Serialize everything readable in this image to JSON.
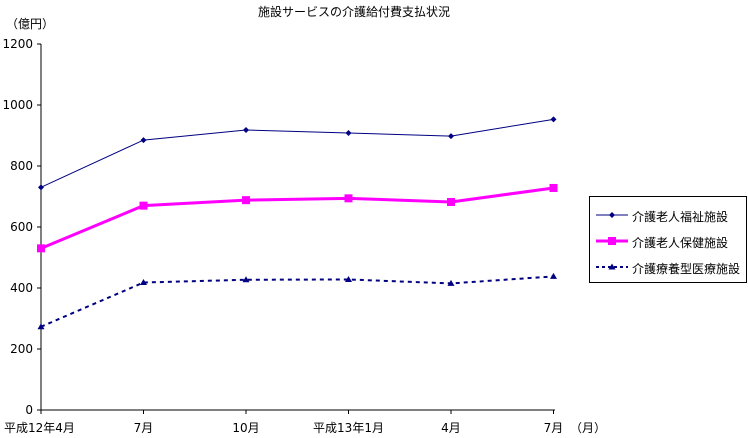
{
  "chart_data": {
    "type": "line",
    "title": "施設サービスの介護給付費支払状況",
    "y_unit_label": "（億円）",
    "x_unit_label": "（月）",
    "categories": [
      "平成12年4月",
      "7月",
      "10月",
      "平成13年1月",
      "4月",
      "7月"
    ],
    "ylim": [
      0,
      1200
    ],
    "yticks": [
      0,
      200,
      400,
      600,
      800,
      1000,
      1200
    ],
    "grid": false,
    "legend_position": "right",
    "series": [
      {
        "name": "介護老人福祉施設",
        "values": [
          730,
          885,
          918,
          908,
          898,
          953
        ],
        "color": "#000080",
        "marker": "diamond",
        "line": "solid",
        "width": 1
      },
      {
        "name": "介護老人保健施設",
        "values": [
          530,
          670,
          688,
          694,
          682,
          728
        ],
        "color": "#FF00FF",
        "marker": "square",
        "line": "solid",
        "width": 3
      },
      {
        "name": "介護療養型医療施設",
        "values": [
          273,
          418,
          427,
          428,
          415,
          438
        ],
        "color": "#000080",
        "marker": "triangle",
        "line": "dashed",
        "width": 2
      }
    ]
  }
}
